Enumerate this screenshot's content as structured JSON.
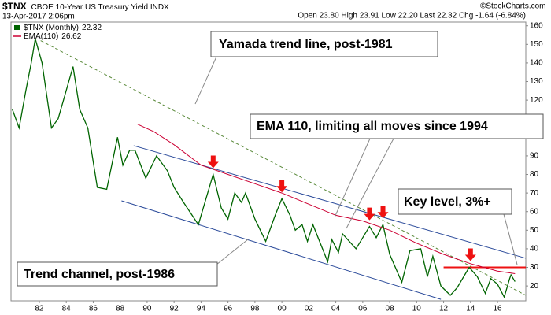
{
  "chart_data": {
    "type": "line",
    "symbol": "$TNX",
    "title": "CBOE 10-Year US Treasury Yield INDX",
    "date": "13-Apr-2017 2:06pm",
    "quote": "Open 23.80 High 23.91 Low 22.20 Last 22.32 Chg -1.64 (-6.84%)",
    "credit": "©StockCharts.com",
    "xlim": [
      1979.9,
      2018.1
    ],
    "ylim": [
      12,
      162
    ],
    "xticks": [
      {
        "value": 1982,
        "label": "82"
      },
      {
        "value": 1984,
        "label": "84"
      },
      {
        "value": 1986,
        "label": "86"
      },
      {
        "value": 1988,
        "label": "88"
      },
      {
        "value": 1990,
        "label": "90"
      },
      {
        "value": 1992,
        "label": "92"
      },
      {
        "value": 1994,
        "label": "94"
      },
      {
        "value": 1996,
        "label": "96"
      },
      {
        "value": 1998,
        "label": "98"
      },
      {
        "value": 2000,
        "label": "00"
      },
      {
        "value": 2002,
        "label": "02"
      },
      {
        "value": 2004,
        "label": "04"
      },
      {
        "value": 2006,
        "label": "06"
      },
      {
        "value": 2008,
        "label": "08"
      },
      {
        "value": 2010,
        "label": "10"
      },
      {
        "value": 2012,
        "label": "12"
      },
      {
        "value": 2014,
        "label": "14"
      },
      {
        "value": 2016,
        "label": "16"
      }
    ],
    "yticks": [
      20,
      30,
      40,
      50,
      60,
      70,
      80,
      90,
      100,
      110,
      120,
      130,
      140,
      150,
      160
    ],
    "grid": false,
    "series": [
      {
        "name": "$TNX (Monthly)",
        "color": "#006400",
        "x": [
          1980.0,
          1980.5,
          1981.0,
          1981.4,
          1981.7,
          1982.2,
          1982.9,
          1983.4,
          1984.5,
          1985.0,
          1985.6,
          1986.3,
          1987.0,
          1987.8,
          1988.2,
          1988.7,
          1989.1,
          1989.9,
          1990.7,
          1991.5,
          1992.0,
          1992.7,
          1993.8,
          1994.9,
          1995.5,
          1996.0,
          1996.5,
          1997.0,
          1997.3,
          1998.0,
          1998.8,
          1999.5,
          2000.0,
          2000.6,
          2001.0,
          2001.5,
          2001.9,
          2002.3,
          2003.4,
          2003.7,
          2004.2,
          2004.5,
          2005.5,
          2006.5,
          2007.0,
          2007.5,
          2008.0,
          2008.9,
          2009.5,
          2010.3,
          2010.8,
          2011.2,
          2011.8,
          2012.5,
          2013.0,
          2013.9,
          2014.5,
          2015.1,
          2015.5,
          2016.0,
          2016.5,
          2016.9,
          2017.0,
          2017.3
        ],
        "values": [
          115,
          105,
          125,
          140,
          153,
          140,
          105,
          110,
          138,
          115,
          105,
          73,
          72,
          100,
          85,
          93,
          93,
          78,
          90,
          82,
          73,
          65,
          53,
          80,
          62,
          56,
          70,
          65,
          70,
          56,
          44,
          58,
          67,
          58,
          50,
          53,
          44,
          53,
          33,
          45,
          38,
          48,
          40,
          52,
          46,
          53,
          37,
          22,
          39,
          40,
          25,
          36,
          20,
          15,
          19,
          30,
          25,
          16,
          24,
          21,
          14,
          24,
          26,
          22.32
        ]
      },
      {
        "name": "EMA(110)",
        "color": "#cc0033",
        "x": [
          1989.3,
          1990.5,
          1992.0,
          1994.0,
          1996.0,
          1998.0,
          2000.0,
          2002.0,
          2004.0,
          2006.0,
          2008.0,
          2010.0,
          2012.0,
          2014.0,
          2016.0,
          2017.3
        ],
        "values": [
          107,
          103,
          96,
          85,
          80,
          75,
          70,
          64,
          58,
          55,
          50,
          43,
          37,
          32,
          28,
          26.62
        ]
      }
    ],
    "trend_lines": [
      {
        "x": [
          1982.1,
          2018.1
        ],
        "values": [
          152,
          15
        ],
        "color": "#5a8a3a",
        "dashed": true
      },
      {
        "x": [
          1989.0,
          2018.1
        ],
        "values": [
          95.5,
          34.9
        ],
        "color": "#2a4a9a",
        "dashed": false
      },
      {
        "x": [
          1988.1,
          2011.8
        ],
        "values": [
          65.8,
          12.8
        ],
        "color": "#2a4a9a",
        "dashed": false
      },
      {
        "x": [
          2012.0,
          2018.1
        ],
        "values": [
          30,
          30
        ],
        "color": "#ee1111",
        "dashed": false
      }
    ],
    "markers": {
      "color": "#ee1111",
      "x": [
        1994.9,
        2000.0,
        2006.5,
        2007.5,
        2014.0
      ],
      "values": [
        80,
        67,
        52,
        53,
        30
      ]
    },
    "annotations": [
      {
        "text": "Yamada trend line, post-1981"
      },
      {
        "text": "EMA 110, limiting all moves since 1994"
      },
      {
        "text": "Key level, 3%+"
      },
      {
        "text": "Trend channel, post-1986"
      }
    ]
  }
}
